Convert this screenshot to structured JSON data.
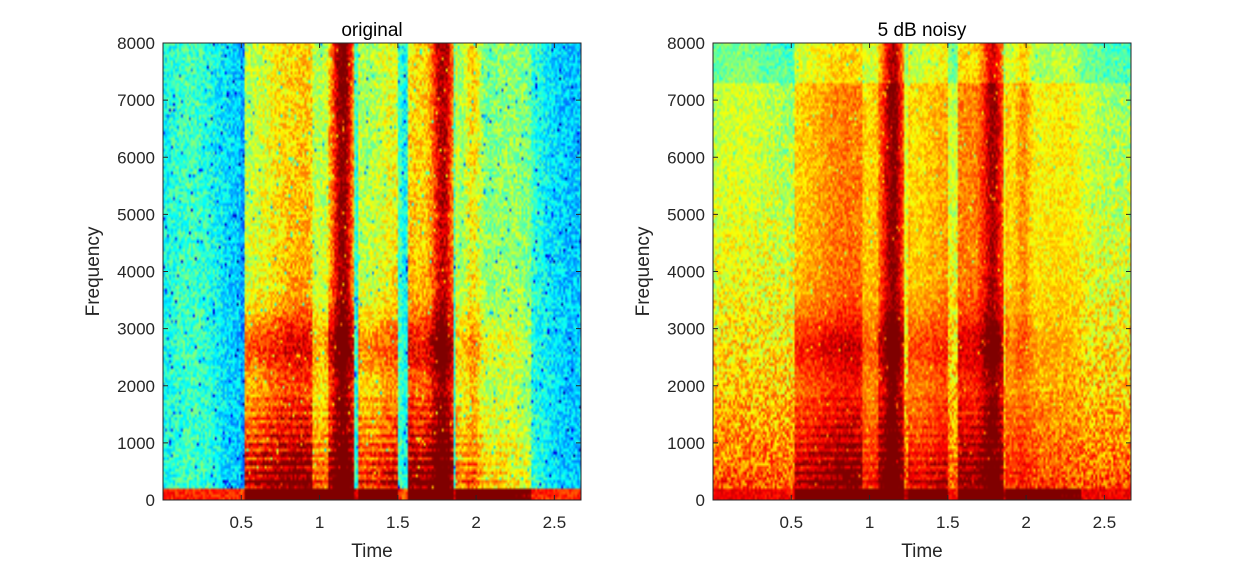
{
  "chart_data": [
    {
      "type": "heatmap",
      "title": "original",
      "xlabel": "Time",
      "ylabel": "Frequency",
      "xlim": [
        0,
        2.67
      ],
      "ylim": [
        0,
        8000
      ],
      "xticks": [
        0.5,
        1,
        1.5,
        2,
        2.5
      ],
      "xtick_labels": [
        "0.5",
        "1",
        "1.5",
        "2",
        "2.5"
      ],
      "yticks": [
        0,
        1000,
        2000,
        3000,
        4000,
        5000,
        6000,
        7000,
        8000
      ],
      "ytick_labels": [
        "0",
        "1000",
        "2000",
        "3000",
        "4000",
        "5000",
        "6000",
        "7000",
        "8000"
      ],
      "colormap": "jet",
      "grid": false
    },
    {
      "type": "heatmap",
      "title": "5 dB noisy",
      "xlabel": "Time",
      "ylabel": "Frequency",
      "xlim": [
        0,
        2.67
      ],
      "ylim": [
        0,
        8000
      ],
      "xticks": [
        0.5,
        1,
        1.5,
        2,
        2.5
      ],
      "xtick_labels": [
        "0.5",
        "1",
        "1.5",
        "2",
        "2.5"
      ],
      "yticks": [
        0,
        1000,
        2000,
        3000,
        4000,
        5000,
        6000,
        7000,
        8000
      ],
      "ytick_labels": [
        "0",
        "1000",
        "2000",
        "3000",
        "4000",
        "5000",
        "6000",
        "7000",
        "8000"
      ],
      "colormap": "jet",
      "grid": false
    }
  ]
}
